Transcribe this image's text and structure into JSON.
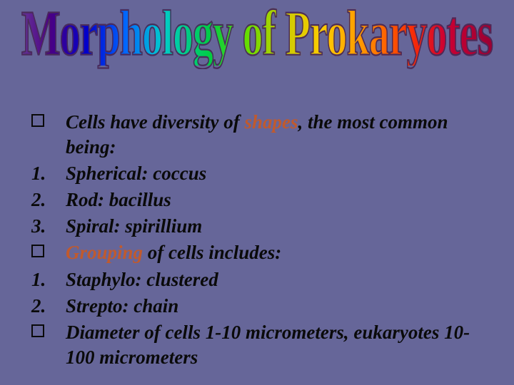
{
  "title": "Morphology of Prokaryotes",
  "items": [
    {
      "marker_type": "box",
      "marker": "",
      "pre": "Cells have diversity of ",
      "highlight": "shapes",
      "post": ", the most common being:"
    },
    {
      "marker_type": "num",
      "marker": "1.",
      "pre": "Spherical: coccus",
      "highlight": "",
      "post": ""
    },
    {
      "marker_type": "num",
      "marker": "2.",
      "pre": "Rod: bacillus",
      "highlight": "",
      "post": ""
    },
    {
      "marker_type": "num",
      "marker": "3.",
      "pre": "Spiral: spirillium",
      "highlight": "",
      "post": ""
    },
    {
      "marker_type": "box",
      "marker": "",
      "pre": "",
      "highlight": "Grouping",
      "post": " of cells includes:"
    },
    {
      "marker_type": "num",
      "marker": "1.",
      "pre": "Staphylo: clustered",
      "highlight": "",
      "post": ""
    },
    {
      "marker_type": "num",
      "marker": "2.",
      "pre": "Strepto: chain",
      "highlight": "",
      "post": ""
    },
    {
      "marker_type": "box",
      "marker": "",
      "pre": "Diameter of cells 1-10 micrometers, eukaryotes 10-100 micrometers",
      "highlight": "",
      "post": ""
    }
  ],
  "colors": {
    "background": "#666699",
    "text": "#0a0a0a",
    "highlight": "#c05a2e"
  }
}
